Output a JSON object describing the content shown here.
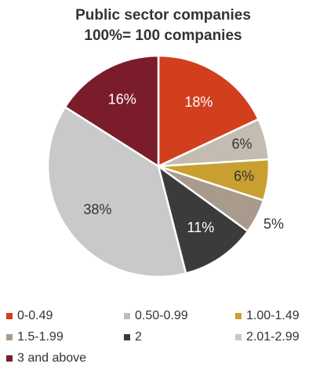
{
  "chart_data": {
    "type": "pie",
    "title": "Public sector companies",
    "subtitle": "100%= 100 companies",
    "categories": [
      "0-0.49",
      "0.50-0.99",
      "1.00-1.49",
      "1.5-1.99",
      "2",
      "2.01-2.99",
      "3 and above"
    ],
    "values": [
      18,
      6,
      6,
      5,
      11,
      38,
      16
    ],
    "value_labels": [
      "18%",
      "6%",
      "6%",
      "5%",
      "11%",
      "38%",
      "16%"
    ],
    "colors": [
      "#d13f1d",
      "#c5bcb1",
      "#c9a030",
      "#a99b8c",
      "#3b3b3b",
      "#c9c9c9",
      "#7b1c2b"
    ],
    "legend": "bottom"
  }
}
